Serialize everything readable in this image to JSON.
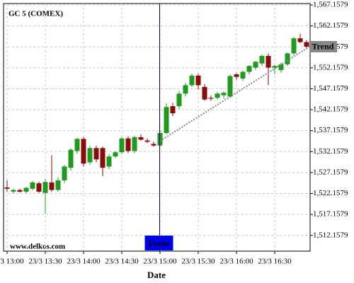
{
  "chart_data": {
    "type": "candlestick",
    "title": "GC 5 (COMEX)",
    "watermark": "www.delkos.com",
    "x_label": "Date",
    "categories": [
      "23/3 13:00",
      null,
      null,
      null,
      null,
      null,
      "23/3 13:30",
      null,
      null,
      null,
      null,
      null,
      "23/3 14:00",
      null,
      null,
      null,
      null,
      null,
      "23/3 14:30",
      null,
      null,
      null,
      null,
      null,
      "23/3 15:00",
      null,
      null,
      null,
      null,
      null,
      "23/3 15:30",
      null,
      null,
      null,
      null,
      null,
      "23/3 16:00",
      null,
      null,
      null,
      null,
      null,
      "23/3 16:30",
      null,
      null,
      null,
      null,
      null
    ],
    "open": [
      1523.6,
      1522.6,
      1523.0,
      1522.6,
      1523.3,
      1524.6,
      1522.3,
      1524.8,
      1523.0,
      1525.3,
      1528.3,
      1532.3,
      1535.2,
      1529.6,
      1533.0,
      1533.0,
      1528.6,
      1531.0,
      1532.0,
      1535.3,
      1532.3,
      1535.6,
      1534.8,
      1534.0,
      1533.6,
      1536.6,
      1543.0,
      1543.0,
      1546.0,
      1548.0,
      1550.3,
      1547.6,
      1545.0,
      1545.0,
      1545.6,
      1545.3,
      1550.6,
      1549.6,
      1551.2,
      1552.2,
      1553.2,
      1555.0,
      1552.2,
      1551.6,
      1553.0,
      1555.6,
      1559.2,
      1558.3
    ],
    "high": [
      1525.3,
      1523.3,
      1523.3,
      1523.8,
      1525.2,
      1525.0,
      1525.6,
      1531.3,
      1526.0,
      1529.0,
      1533.0,
      1535.5,
      1535.6,
      1533.5,
      1533.6,
      1533.4,
      1531.6,
      1532.3,
      1535.6,
      1535.8,
      1536.0,
      1536.3,
      1535.3,
      1534.6,
      1537.3,
      1543.6,
      1543.8,
      1546.6,
      1548.6,
      1550.8,
      1550.8,
      1548.3,
      1545.6,
      1546.4,
      1546.6,
      1550.6,
      1551.0,
      1551.5,
      1552.8,
      1553.8,
      1555.3,
      1555.6,
      1552.8,
      1553.4,
      1555.8,
      1559.5,
      1560.3,
      1558.8
    ],
    "low": [
      1522.6,
      1522.2,
      1522.4,
      1522.2,
      1523.0,
      1522.3,
      1517.3,
      1522.6,
      1522.6,
      1524.6,
      1527.6,
      1531.6,
      1528.6,
      1529.0,
      1529.6,
      1526.3,
      1528.0,
      1530.6,
      1531.6,
      1531.8,
      1531.8,
      1534.8,
      1534.2,
      1533.3,
      1533.3,
      1536.3,
      1540.6,
      1542.3,
      1545.3,
      1547.6,
      1547.0,
      1544.3,
      1544.3,
      1544.6,
      1544.8,
      1545.0,
      1549.3,
      1549.0,
      1550.6,
      1551.6,
      1552.6,
      1548.0,
      1550.6,
      1551.0,
      1552.6,
      1555.2,
      1558.0,
      1556.6
    ],
    "close": [
      1523.3,
      1523.0,
      1522.6,
      1523.5,
      1524.8,
      1522.6,
      1524.9,
      1523.0,
      1525.3,
      1528.6,
      1532.6,
      1535.2,
      1529.3,
      1533.0,
      1530.3,
      1528.3,
      1531.0,
      1532.0,
      1535.3,
      1532.3,
      1535.6,
      1535.0,
      1534.5,
      1533.6,
      1536.6,
      1542.8,
      1541.3,
      1546.0,
      1548.0,
      1550.3,
      1548.0,
      1544.6,
      1544.8,
      1546.0,
      1546.2,
      1550.2,
      1550.0,
      1551.2,
      1552.6,
      1553.6,
      1555.0,
      1552.2,
      1552.6,
      1553.0,
      1555.6,
      1559.2,
      1558.3,
      1557.2
    ],
    "up_color": "#1f9a1f",
    "down_color": "#8b0a0a",
    "ylim": [
      1508.4,
      1567.5
    ],
    "yticks": [
      {
        "value": 1512.1579,
        "label": "1,512.1579"
      },
      {
        "value": 1517.1579,
        "label": "1,517.1579"
      },
      {
        "value": 1522.1579,
        "label": "1,522.1579"
      },
      {
        "value": 1527.1579,
        "label": "1,527.1579"
      },
      {
        "value": 1532.1579,
        "label": "1,532.1579"
      },
      {
        "value": 1537.1579,
        "label": "1,537.1579"
      },
      {
        "value": 1542.1579,
        "label": "1,542.1579"
      },
      {
        "value": 1547.1579,
        "label": "1,547.1579"
      },
      {
        "value": 1552.1579,
        "label": "1,552.1579"
      },
      {
        "value": 1557.1579,
        "label": "1,557.1579"
      },
      {
        "value": 1562.1579,
        "label": "1,562.1579"
      },
      {
        "value": 1567.1579,
        "label": "1,567.1579"
      }
    ],
    "grid": true,
    "event": {
      "label": "Event",
      "x": 24,
      "color": "#0000ee"
    },
    "trend": {
      "label": "Trend",
      "x": [
        24,
        47
      ],
      "values": [
        1534.7,
        1557.2
      ],
      "color": "#888888"
    }
  }
}
